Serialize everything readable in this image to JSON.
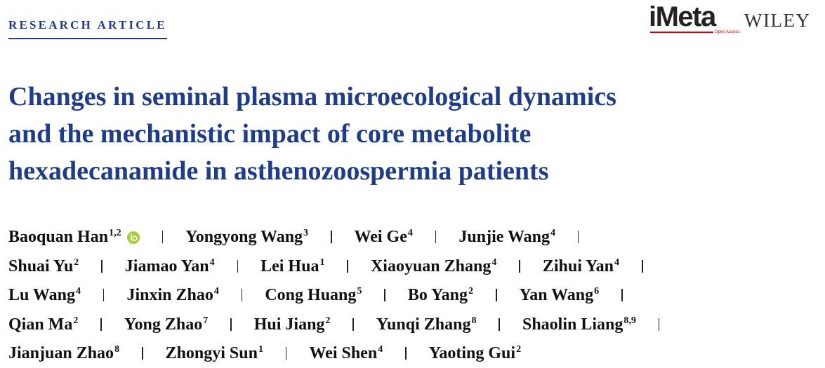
{
  "header": {
    "label": "RESEARCH ARTICLE",
    "logo": "iMeta",
    "logo_tag": "Open Access",
    "publisher": "WILEY"
  },
  "title_lines": [
    "Changes in seminal plasma microecological dynamics",
    "and the mechanistic impact of core metabolite",
    "hexadecanamide in asthenozoospermia patients"
  ],
  "author_lines": [
    [
      {
        "name": "Baoquan Han",
        "aff": "1,2"
      },
      {
        "name": "Yongyong Wang",
        "aff": "3"
      },
      {
        "name": "Wei Ge",
        "aff": "4"
      },
      {
        "name": "Junjie Wang",
        "aff": "4"
      }
    ],
    [
      {
        "name": "Shuai Yu",
        "aff": "2"
      },
      {
        "name": "Jiamao Yan",
        "aff": "4"
      },
      {
        "name": "Lei Hua",
        "aff": "1"
      },
      {
        "name": "Xiaoyuan Zhang",
        "aff": "4"
      },
      {
        "name": "Zihui Yan",
        "aff": "4"
      }
    ],
    [
      {
        "name": "Lu Wang",
        "aff": "4"
      },
      {
        "name": "Jinxin Zhao",
        "aff": "4"
      },
      {
        "name": "Cong Huang",
        "aff": "5"
      },
      {
        "name": "Bo Yang",
        "aff": "2"
      },
      {
        "name": "Yan Wang",
        "aff": "6"
      }
    ],
    [
      {
        "name": "Qian Ma",
        "aff": "2"
      },
      {
        "name": "Yong Zhao",
        "aff": "7"
      },
      {
        "name": "Hui Jiang",
        "aff": "2"
      },
      {
        "name": "Yunqi Zhang",
        "aff": "8"
      },
      {
        "name": "Shaolin Liang",
        "aff": "8,9"
      }
    ],
    [
      {
        "name": "Jianjuan Zhao",
        "aff": "8"
      },
      {
        "name": "Zhongyi Sun",
        "aff": "1"
      },
      {
        "name": "Wei Shen",
        "aff": "4"
      },
      {
        "name": "Yaoting Gui",
        "aff": "2"
      }
    ]
  ]
}
